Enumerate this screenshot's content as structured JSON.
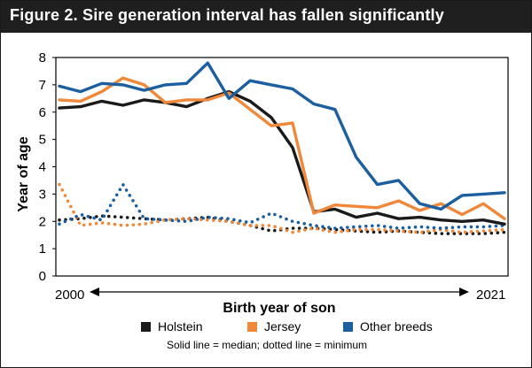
{
  "title": "Figure 2. Sire generation interval has fallen significantly",
  "note": "Solid line = median; dotted line = minimum",
  "colors": {
    "holstein": "#1a1a1a",
    "jersey": "#f0883a",
    "other": "#1c5fa0",
    "header": "#1f1f1f"
  },
  "legend": [
    {
      "label": "Holstein",
      "color": "#1a1a1a"
    },
    {
      "label": "Jersey",
      "color": "#f0883a"
    },
    {
      "label": "Other breeds",
      "color": "#1c5fa0"
    }
  ],
  "chart_data": {
    "type": "line",
    "title": "Figure 2. Sire generation interval has fallen significantly",
    "xlabel": "Birth year of son",
    "ylabel": "Year of age",
    "x_start_label": "2000",
    "x_end_label": "2021",
    "ylim": [
      0,
      8
    ],
    "yticks": [
      "0",
      "1",
      "2",
      "3",
      "4",
      "5",
      "6",
      "7",
      "8"
    ],
    "grid": false,
    "legend_position": "bottom",
    "x": [
      2000,
      2001,
      2002,
      2003,
      2004,
      2005,
      2006,
      2007,
      2008,
      2009,
      2010,
      2011,
      2012,
      2013,
      2014,
      2015,
      2016,
      2017,
      2018,
      2019,
      2020,
      2021
    ],
    "series": [
      {
        "name": "Holstein",
        "color": "#1a1a1a",
        "style": "solid",
        "values": [
          6.15,
          6.2,
          6.4,
          6.25,
          6.45,
          6.35,
          6.2,
          6.5,
          6.75,
          6.4,
          5.8,
          4.7,
          2.35,
          2.45,
          2.15,
          2.3,
          2.1,
          2.15,
          2.05,
          2.0,
          2.05,
          1.9
        ]
      },
      {
        "name": "Jersey",
        "color": "#f0883a",
        "style": "solid",
        "values": [
          6.45,
          6.4,
          6.75,
          7.25,
          7.0,
          6.35,
          6.45,
          6.45,
          6.7,
          6.1,
          5.5,
          5.6,
          2.3,
          2.6,
          2.55,
          2.5,
          2.75,
          2.4,
          2.65,
          2.25,
          2.65,
          2.1
        ]
      },
      {
        "name": "Other breeds",
        "color": "#1c5fa0",
        "style": "solid",
        "values": [
          6.95,
          6.75,
          7.05,
          7.0,
          6.8,
          7.0,
          7.05,
          7.8,
          6.5,
          7.15,
          7.0,
          6.85,
          6.3,
          6.1,
          4.35,
          3.35,
          3.5,
          2.65,
          2.45,
          2.95,
          3.0,
          3.05
        ]
      },
      {
        "name": "Holstein",
        "color": "#1a1a1a",
        "style": "dotted",
        "values": [
          2.05,
          2.1,
          2.2,
          2.15,
          2.1,
          2.05,
          2.1,
          2.15,
          2.0,
          1.85,
          1.65,
          1.75,
          1.75,
          1.7,
          1.65,
          1.6,
          1.65,
          1.6,
          1.55,
          1.55,
          1.55,
          1.6
        ]
      },
      {
        "name": "Jersey",
        "color": "#f0883a",
        "style": "dotted",
        "values": [
          3.35,
          1.85,
          1.95,
          1.85,
          1.9,
          2.05,
          2.1,
          2.05,
          2.0,
          1.85,
          1.85,
          1.6,
          1.75,
          1.6,
          1.7,
          1.7,
          1.65,
          1.6,
          1.7,
          1.6,
          1.65,
          1.7
        ]
      },
      {
        "name": "Other breeds",
        "color": "#1c5fa0",
        "style": "dotted",
        "values": [
          1.9,
          2.25,
          2.05,
          3.35,
          2.1,
          2.05,
          2.0,
          2.15,
          2.1,
          1.95,
          2.3,
          2.0,
          1.85,
          1.75,
          1.8,
          1.85,
          1.75,
          1.8,
          1.75,
          1.8,
          1.8,
          1.85
        ]
      }
    ]
  }
}
